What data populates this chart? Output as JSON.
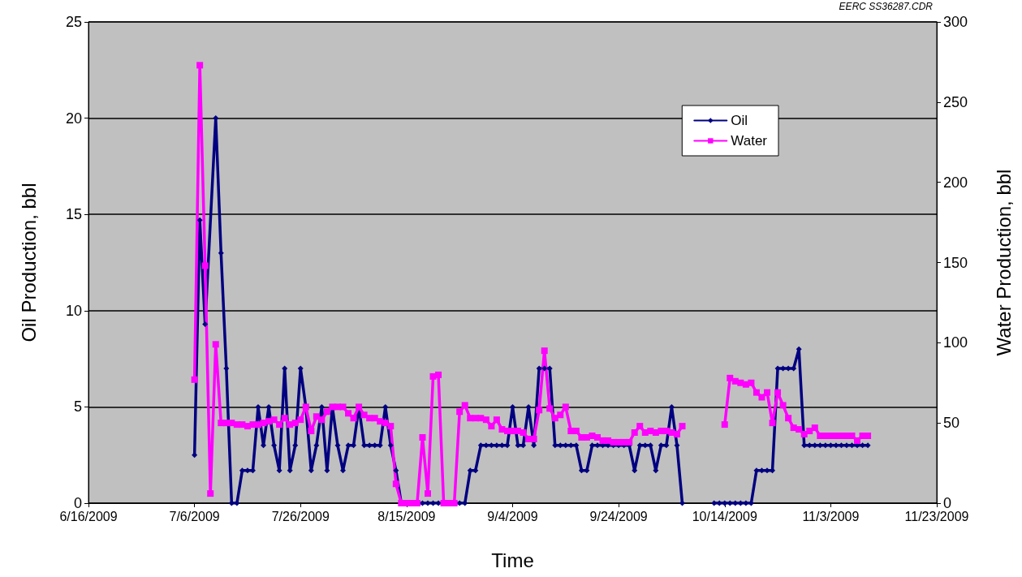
{
  "chart_data": {
    "type": "line",
    "xlabel": "Time",
    "ylabel": "Oil Production, bbl",
    "y2label": "Water Production, bbl",
    "annotations": [
      "EERC SS36287.CDR"
    ],
    "xlim": [
      "2009-06-16",
      "2009-11-23"
    ],
    "xticks": [
      {
        "value": "2009-06-16",
        "label": "6/16/2009"
      },
      {
        "value": "2009-07-06",
        "label": "7/6/2009"
      },
      {
        "value": "2009-07-26",
        "label": "7/26/2009"
      },
      {
        "value": "2009-08-15",
        "label": "8/15/2009"
      },
      {
        "value": "2009-09-04",
        "label": "9/4/2009"
      },
      {
        "value": "2009-09-24",
        "label": "9/24/2009"
      },
      {
        "value": "2009-10-14",
        "label": "10/14/2009"
      },
      {
        "value": "2009-11-03",
        "label": "11/3/2009"
      },
      {
        "value": "2009-11-23",
        "label": "11/23/2009"
      }
    ],
    "ylim": [
      0,
      25
    ],
    "yticks": [
      0,
      5,
      10,
      15,
      20,
      25
    ],
    "y2lim": [
      0,
      300
    ],
    "y2ticks": [
      0,
      50,
      100,
      150,
      200,
      250,
      300
    ],
    "grid": "y",
    "legend": "top right",
    "line_style": "solid",
    "series": [
      {
        "name": "Oil",
        "color": "#000080",
        "marker": "diamond",
        "x": [
          "2009-07-06",
          "2009-07-07",
          "2009-07-08",
          "2009-07-10",
          "2009-07-11",
          "2009-07-12",
          "2009-07-13",
          "2009-07-14",
          "2009-07-15",
          "2009-07-16",
          "2009-07-17",
          "2009-07-18",
          "2009-07-19",
          "2009-07-20",
          "2009-07-21",
          "2009-07-22",
          "2009-07-23",
          "2009-07-24",
          "2009-07-25",
          "2009-07-26",
          "2009-07-27",
          "2009-07-28",
          "2009-07-29",
          "2009-07-30",
          "2009-07-31",
          "2009-08-01",
          "2009-08-02",
          "2009-08-03",
          "2009-08-04",
          "2009-08-05",
          "2009-08-06",
          "2009-08-07",
          "2009-08-08",
          "2009-08-09",
          "2009-08-10",
          "2009-08-11",
          "2009-08-12",
          "2009-08-13",
          "2009-08-14",
          "2009-08-15",
          "2009-08-16",
          "2009-08-17",
          "2009-08-18",
          "2009-08-19",
          "2009-08-20",
          "2009-08-21",
          "2009-08-22",
          "2009-08-23",
          "2009-08-24",
          "2009-08-25",
          "2009-08-26",
          "2009-08-27",
          "2009-08-28",
          "2009-08-29",
          "2009-08-30",
          "2009-08-31",
          "2009-09-01",
          "2009-09-02",
          "2009-09-03",
          "2009-09-04",
          "2009-09-05",
          "2009-09-06",
          "2009-09-07",
          "2009-09-08",
          "2009-09-09",
          "2009-09-10",
          "2009-09-11",
          "2009-09-12",
          "2009-09-13",
          "2009-09-14",
          "2009-09-15",
          "2009-09-16",
          "2009-09-17",
          "2009-09-18",
          "2009-09-19",
          "2009-09-20",
          "2009-09-21",
          "2009-09-22",
          "2009-09-23",
          "2009-09-24",
          "2009-09-25",
          "2009-09-26",
          "2009-09-27",
          "2009-09-28",
          "2009-09-29",
          "2009-09-30",
          "2009-10-01",
          "2009-10-02",
          "2009-10-03",
          "2009-10-04",
          "2009-10-05",
          "2009-10-06",
          "2009-10-09",
          "2009-10-12",
          "2009-10-13",
          "2009-10-14",
          "2009-10-15",
          "2009-10-16",
          "2009-10-17",
          "2009-10-18",
          "2009-10-19",
          "2009-10-20",
          "2009-10-21",
          "2009-10-22",
          "2009-10-23",
          "2009-10-24",
          "2009-10-25",
          "2009-10-26",
          "2009-10-27",
          "2009-10-28",
          "2009-10-29",
          "2009-10-30",
          "2009-10-31",
          "2009-11-01",
          "2009-11-02",
          "2009-11-03",
          "2009-11-04",
          "2009-11-05",
          "2009-11-06",
          "2009-11-07",
          "2009-11-08",
          "2009-11-09",
          "2009-11-10"
        ],
        "values": [
          2.5,
          14.7,
          9.3,
          20,
          13,
          7,
          0,
          0,
          1.7,
          1.7,
          1.7,
          5,
          3,
          5,
          3,
          1.7,
          7,
          1.7,
          3,
          7,
          5,
          1.7,
          3,
          5,
          1.7,
          5,
          3,
          1.7,
          3,
          3,
          5,
          3,
          3,
          3,
          3,
          5,
          3,
          1.7,
          0,
          0,
          0,
          0,
          0,
          0,
          0,
          0,
          0,
          0,
          0,
          0,
          0,
          1.7,
          1.7,
          3,
          3,
          3,
          3,
          3,
          3,
          5,
          3,
          3,
          5,
          3,
          7,
          7,
          7,
          3,
          3,
          3,
          3,
          3,
          1.7,
          1.7,
          3,
          3,
          3,
          3,
          3,
          3,
          3,
          3,
          1.7,
          3,
          3,
          3,
          1.7,
          3,
          3,
          5,
          3,
          0,
          null,
          0,
          0,
          0,
          0,
          0,
          0,
          0,
          0,
          1.7,
          1.7,
          1.7,
          1.7,
          7,
          7,
          7,
          7,
          8,
          3,
          3,
          3,
          3,
          3,
          3,
          3,
          3,
          3,
          3,
          3,
          3,
          3
        ]
      },
      {
        "name": "Water",
        "color": "#ff00ff",
        "marker": "square",
        "axis": "y2",
        "x": [
          "2009-07-06",
          "2009-07-07",
          "2009-07-08",
          "2009-07-09",
          "2009-07-10",
          "2009-07-11",
          "2009-07-12",
          "2009-07-13",
          "2009-07-14",
          "2009-07-15",
          "2009-07-16",
          "2009-07-17",
          "2009-07-18",
          "2009-07-19",
          "2009-07-20",
          "2009-07-21",
          "2009-07-22",
          "2009-07-23",
          "2009-07-24",
          "2009-07-25",
          "2009-07-26",
          "2009-07-27",
          "2009-07-28",
          "2009-07-29",
          "2009-07-30",
          "2009-07-31",
          "2009-08-01",
          "2009-08-02",
          "2009-08-03",
          "2009-08-04",
          "2009-08-05",
          "2009-08-06",
          "2009-08-07",
          "2009-08-08",
          "2009-08-09",
          "2009-08-10",
          "2009-08-11",
          "2009-08-12",
          "2009-08-13",
          "2009-08-14",
          "2009-08-15",
          "2009-08-16",
          "2009-08-17",
          "2009-08-18",
          "2009-08-19",
          "2009-08-20",
          "2009-08-21",
          "2009-08-22",
          "2009-08-23",
          "2009-08-24",
          "2009-08-25",
          "2009-08-26",
          "2009-08-27",
          "2009-08-28",
          "2009-08-29",
          "2009-08-30",
          "2009-08-31",
          "2009-09-01",
          "2009-09-02",
          "2009-09-03",
          "2009-09-04",
          "2009-09-05",
          "2009-09-06",
          "2009-09-07",
          "2009-09-08",
          "2009-09-09",
          "2009-09-10",
          "2009-09-11",
          "2009-09-12",
          "2009-09-13",
          "2009-09-14",
          "2009-09-15",
          "2009-09-16",
          "2009-09-17",
          "2009-09-18",
          "2009-09-19",
          "2009-09-20",
          "2009-09-21",
          "2009-09-22",
          "2009-09-23",
          "2009-09-24",
          "2009-09-25",
          "2009-09-26",
          "2009-09-27",
          "2009-09-28",
          "2009-09-29",
          "2009-09-30",
          "2009-10-01",
          "2009-10-02",
          "2009-10-03",
          "2009-10-04",
          "2009-10-05",
          "2009-10-06",
          "2009-10-10",
          "2009-10-14",
          "2009-10-15",
          "2009-10-16",
          "2009-10-17",
          "2009-10-18",
          "2009-10-19",
          "2009-10-20",
          "2009-10-21",
          "2009-10-22",
          "2009-10-23",
          "2009-10-24",
          "2009-10-25",
          "2009-10-26",
          "2009-10-27",
          "2009-10-28",
          "2009-10-29",
          "2009-10-30",
          "2009-10-31",
          "2009-11-01",
          "2009-11-02",
          "2009-11-03",
          "2009-11-04",
          "2009-11-05",
          "2009-11-06",
          "2009-11-07",
          "2009-11-08",
          "2009-11-09",
          "2009-11-10"
        ],
        "values": [
          77,
          273,
          148,
          6,
          99,
          50,
          50,
          50,
          49,
          49,
          48,
          49,
          49,
          50,
          51,
          52,
          49,
          53,
          49,
          50,
          52,
          60,
          45,
          54,
          52,
          57,
          60,
          60,
          60,
          56,
          53,
          60,
          55,
          53,
          53,
          51,
          50,
          48,
          12,
          0,
          0,
          0,
          0,
          41,
          6,
          79,
          80,
          0,
          0,
          0,
          57,
          61,
          53,
          53,
          53,
          52,
          48,
          52,
          46,
          45,
          45,
          45,
          44,
          40,
          40,
          58,
          95,
          59,
          53,
          55,
          60,
          45,
          45,
          41,
          41,
          42,
          41,
          39,
          39,
          38,
          38,
          38,
          38,
          44,
          48,
          44,
          45,
          44,
          45,
          45,
          44,
          43,
          48,
          null,
          49,
          78,
          76,
          75,
          74,
          75,
          69,
          66,
          69,
          50,
          69,
          61,
          53,
          47,
          46,
          43,
          45,
          47,
          42,
          42,
          42,
          42,
          42,
          42,
          42,
          39,
          42,
          42
        ]
      }
    ]
  }
}
